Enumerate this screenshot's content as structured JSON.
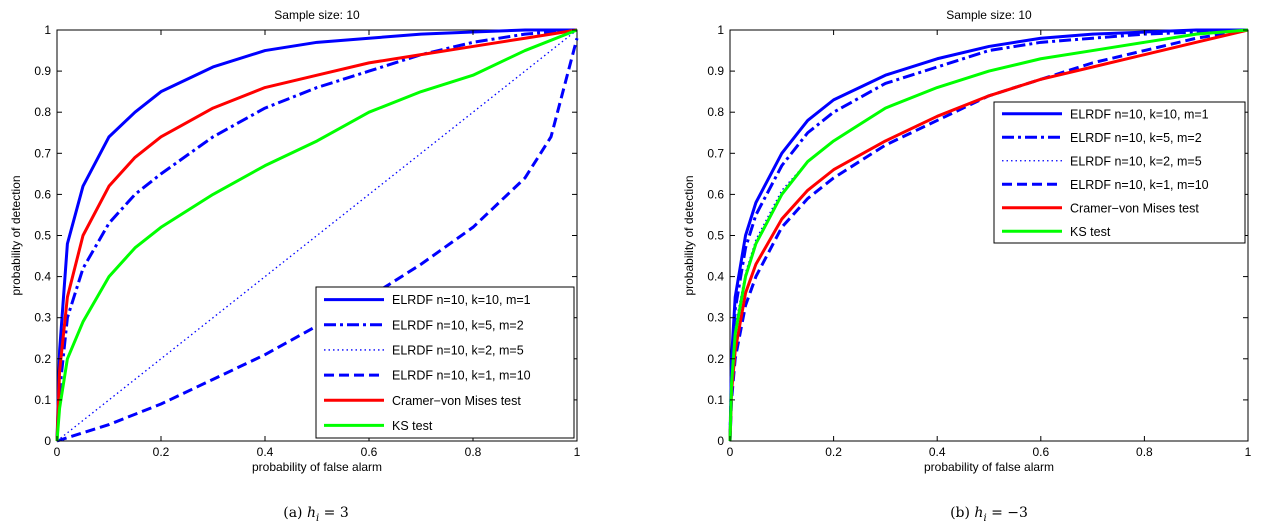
{
  "chart_data": [
    {
      "type": "line",
      "title": "Sample size: 10",
      "xlabel": "probability of false alarm",
      "ylabel": "probability of detection",
      "xlim": [
        0,
        1
      ],
      "ylim": [
        0,
        1
      ],
      "xticks": [
        "0",
        "0.2",
        "0.4",
        "0.6",
        "0.8",
        "1"
      ],
      "yticks": [
        "0",
        "0.1",
        "0.2",
        "0.3",
        "0.4",
        "0.5",
        "0.6",
        "0.7",
        "0.8",
        "0.9",
        "1"
      ],
      "grid": false,
      "legend_position": "bottom-right",
      "caption": "(a) h_i = 3",
      "caption_parts": [
        "(a) ",
        "h",
        "i",
        " = 3"
      ],
      "series": [
        {
          "name": "ELRDF n=10, k=10, m=1",
          "color": "#0000ff",
          "style": "solid",
          "x": [
            0,
            0.005,
            0.02,
            0.05,
            0.1,
            0.15,
            0.2,
            0.3,
            0.4,
            0.5,
            0.6,
            0.7,
            0.8,
            0.9,
            1.0
          ],
          "y": [
            0,
            0.22,
            0.48,
            0.62,
            0.74,
            0.8,
            0.85,
            0.91,
            0.95,
            0.97,
            0.98,
            0.99,
            0.995,
            1.0,
            1.0
          ]
        },
        {
          "name": "ELRDF n=10, k=5, m=2",
          "color": "#0000ff",
          "style": "dashdot",
          "x": [
            0,
            0.005,
            0.02,
            0.05,
            0.1,
            0.15,
            0.2,
            0.3,
            0.4,
            0.5,
            0.6,
            0.7,
            0.8,
            0.9,
            1.0
          ],
          "y": [
            0,
            0.12,
            0.3,
            0.42,
            0.53,
            0.6,
            0.65,
            0.74,
            0.81,
            0.86,
            0.9,
            0.94,
            0.97,
            0.99,
            1.0
          ]
        },
        {
          "name": "ELRDF n=10, k=2, m=5",
          "color": "#0000ff",
          "style": "dotted",
          "x": [
            0,
            0.1,
            0.2,
            0.3,
            0.4,
            0.5,
            0.6,
            0.7,
            0.8,
            0.9,
            1.0
          ],
          "y": [
            0,
            0.1,
            0.2,
            0.3,
            0.4,
            0.5,
            0.6,
            0.7,
            0.8,
            0.9,
            1.0
          ]
        },
        {
          "name": "ELRDF n=10, k=1, m=10",
          "color": "#0000ff",
          "style": "dashed",
          "x": [
            0,
            0.1,
            0.2,
            0.3,
            0.4,
            0.5,
            0.6,
            0.7,
            0.8,
            0.9,
            0.95,
            1.0
          ],
          "y": [
            0,
            0.04,
            0.09,
            0.15,
            0.21,
            0.28,
            0.35,
            0.43,
            0.52,
            0.64,
            0.74,
            0.98
          ]
        },
        {
          "name": "Cramer−von Mises test",
          "color": "#ff0000",
          "style": "solid",
          "x": [
            0,
            0.005,
            0.02,
            0.05,
            0.1,
            0.15,
            0.2,
            0.3,
            0.4,
            0.5,
            0.6,
            0.7,
            0.8,
            0.9,
            1.0
          ],
          "y": [
            0,
            0.17,
            0.35,
            0.5,
            0.62,
            0.69,
            0.74,
            0.81,
            0.86,
            0.89,
            0.92,
            0.94,
            0.96,
            0.98,
            1.0
          ]
        },
        {
          "name": "KS test",
          "color": "#00ff00",
          "style": "solid",
          "x": [
            0,
            0.005,
            0.02,
            0.05,
            0.1,
            0.15,
            0.2,
            0.3,
            0.4,
            0.5,
            0.6,
            0.7,
            0.8,
            0.9,
            1.0
          ],
          "y": [
            0,
            0.08,
            0.2,
            0.29,
            0.4,
            0.47,
            0.52,
            0.6,
            0.67,
            0.73,
            0.8,
            0.85,
            0.89,
            0.95,
            1.0
          ]
        }
      ]
    },
    {
      "type": "line",
      "title": "Sample size: 10",
      "xlabel": "probability of false alarm",
      "ylabel": "probability of detection",
      "xlim": [
        0,
        1
      ],
      "ylim": [
        0,
        1
      ],
      "xticks": [
        "0",
        "0.2",
        "0.4",
        "0.6",
        "0.8",
        "1"
      ],
      "yticks": [
        "0",
        "0.1",
        "0.2",
        "0.3",
        "0.4",
        "0.5",
        "0.6",
        "0.7",
        "0.8",
        "0.9",
        "1"
      ],
      "grid": false,
      "legend_position": "top-right",
      "caption": "(b) h_i = −3",
      "caption_parts": [
        "(b) ",
        "h",
        "i",
        " = −3"
      ],
      "series": [
        {
          "name": "ELRDF n=10, k=10, m=1",
          "color": "#0000ff",
          "style": "solid",
          "x": [
            0,
            0.003,
            0.01,
            0.03,
            0.05,
            0.1,
            0.15,
            0.2,
            0.3,
            0.4,
            0.5,
            0.6,
            0.7,
            0.8,
            0.9,
            1.0
          ],
          "y": [
            0,
            0.2,
            0.35,
            0.5,
            0.58,
            0.7,
            0.78,
            0.83,
            0.89,
            0.93,
            0.96,
            0.98,
            0.99,
            0.995,
            1.0,
            1.0
          ]
        },
        {
          "name": "ELRDF n=10, k=5, m=2",
          "color": "#0000ff",
          "style": "dashdot",
          "x": [
            0,
            0.003,
            0.01,
            0.03,
            0.05,
            0.1,
            0.15,
            0.2,
            0.3,
            0.4,
            0.5,
            0.6,
            0.7,
            0.8,
            0.9,
            1.0
          ],
          "y": [
            0,
            0.18,
            0.32,
            0.47,
            0.55,
            0.67,
            0.75,
            0.8,
            0.87,
            0.91,
            0.95,
            0.97,
            0.98,
            0.99,
            0.995,
            1.0
          ]
        },
        {
          "name": "ELRDF n=10, k=2, m=5",
          "color": "#0000ff",
          "style": "dotted",
          "x": [
            0,
            0.003,
            0.01,
            0.03,
            0.05,
            0.1,
            0.15,
            0.2,
            0.3,
            0.4,
            0.5,
            0.6,
            0.7,
            0.8,
            0.9,
            1.0
          ],
          "y": [
            0,
            0.15,
            0.28,
            0.41,
            0.49,
            0.61,
            0.68,
            0.73,
            0.81,
            0.86,
            0.9,
            0.93,
            0.95,
            0.97,
            0.99,
            1.0
          ]
        },
        {
          "name": "ELRDF n=10, k=1, m=10",
          "color": "#0000ff",
          "style": "dashed",
          "x": [
            0,
            0.003,
            0.01,
            0.03,
            0.05,
            0.1,
            0.15,
            0.2,
            0.3,
            0.4,
            0.5,
            0.6,
            0.7,
            0.8,
            0.9,
            1.0
          ],
          "y": [
            0,
            0.1,
            0.2,
            0.33,
            0.4,
            0.52,
            0.59,
            0.64,
            0.72,
            0.78,
            0.84,
            0.88,
            0.92,
            0.95,
            0.98,
            1.0
          ]
        },
        {
          "name": "Cramer−von Mises test",
          "color": "#ff0000",
          "style": "solid",
          "x": [
            0,
            0.003,
            0.01,
            0.03,
            0.05,
            0.1,
            0.15,
            0.2,
            0.3,
            0.4,
            0.5,
            0.6,
            0.7,
            0.8,
            0.9,
            1.0
          ],
          "y": [
            0,
            0.12,
            0.22,
            0.36,
            0.43,
            0.54,
            0.61,
            0.66,
            0.73,
            0.79,
            0.84,
            0.88,
            0.91,
            0.94,
            0.97,
            1.0
          ]
        },
        {
          "name": "KS test",
          "color": "#00ff00",
          "style": "solid",
          "x": [
            0,
            0.003,
            0.01,
            0.03,
            0.05,
            0.1,
            0.15,
            0.2,
            0.3,
            0.4,
            0.5,
            0.6,
            0.7,
            0.8,
            0.9,
            1.0
          ],
          "y": [
            0,
            0.14,
            0.26,
            0.4,
            0.48,
            0.6,
            0.68,
            0.73,
            0.81,
            0.86,
            0.9,
            0.93,
            0.95,
            0.97,
            0.99,
            1.0
          ]
        }
      ]
    }
  ]
}
